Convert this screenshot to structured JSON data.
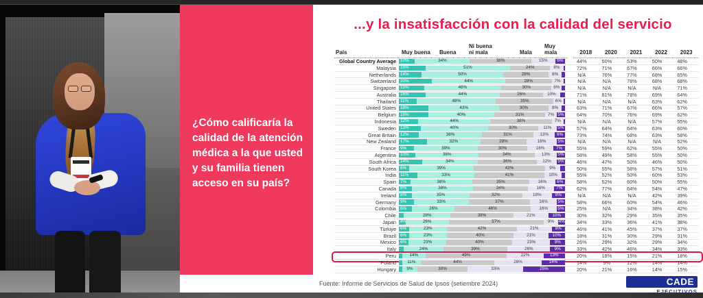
{
  "slide": {
    "question": "¿Cómo calificaría la calidad de la atención médica a la que usted y su familia tienen acceso en su país?",
    "title": "...y la insatisfacción con la calidad del servicio",
    "source": "Fuente: Informe de Servicios de Salud de Ipsos (setiembre 2024)",
    "logo": {
      "primary": "CADE",
      "secondary": "EJECUTIVOS"
    },
    "accent_pink": "#ef3a5d",
    "title_color": "#e91c4e"
  },
  "chart_data": {
    "type": "bar",
    "stacked": true,
    "orientation": "horizontal",
    "title": "...y la insatisfacción con la calidad del servicio",
    "country_column_header": "País",
    "segment_labels": [
      "Muy buena",
      "Buena",
      "Ni buena\nni mala",
      "Mala",
      "Muy mala"
    ],
    "year_labels": [
      "2018",
      "2020",
      "2021",
      "2022",
      "2023"
    ],
    "units": "%",
    "highlight_country": "Peru",
    "colors": {
      "muy_buena": "#35c4b4",
      "buena": "#a8efe2",
      "ni_buena_ni_mala": "#c9c9c9",
      "mala": "#e8e2f5",
      "muy_mala": "#5e2ca5",
      "highlight_box": "#e0164b"
    },
    "rows": [
      {
        "country": "Global Country Average",
        "bold": true,
        "segments": [
          10,
          34,
          38,
          15,
          6
        ],
        "years": [
          "44%",
          "50%",
          "53%",
          "50%",
          "48%"
        ]
      },
      {
        "country": "Malaysia",
        "segments": [
          16,
          51,
          24,
          8,
          1
        ],
        "years": [
          "72%",
          "71%",
          "67%",
          "66%",
          "66%"
        ]
      },
      {
        "country": "Netherlands",
        "segments": [
          14,
          50,
          28,
          8,
          2
        ],
        "years": [
          "N/A",
          "76%",
          "77%",
          "68%",
          "65%"
        ]
      },
      {
        "country": "Switzerland",
        "segments": [
          20,
          44,
          28,
          7,
          1
        ],
        "years": [
          "N/A",
          "N/A",
          "78%",
          "68%",
          "68%"
        ]
      },
      {
        "country": "Singapore",
        "segments": [
          15,
          46,
          30,
          6,
          2
        ],
        "years": [
          "N/A",
          "N/A",
          "N/A",
          "N/A",
          "71%"
        ]
      },
      {
        "country": "Australia",
        "segments": [
          16,
          44,
          26,
          10,
          3
        ],
        "years": [
          "71%",
          "81%",
          "78%",
          "69%",
          "64%"
        ]
      },
      {
        "country": "Thailand",
        "segments": [
          11,
          48,
          35,
          6,
          1
        ],
        "years": [
          "N/A",
          "N/A",
          "N/A",
          "63%",
          "62%"
        ]
      },
      {
        "country": "United States",
        "segments": [
          18,
          43,
          30,
          8,
          2
        ],
        "years": [
          "63%",
          "71%",
          "67%",
          "66%",
          "57%"
        ]
      },
      {
        "country": "Belgium",
        "segments": [
          18,
          40,
          31,
          7,
          5
        ],
        "years": [
          "64%",
          "70%",
          "76%",
          "69%",
          "62%"
        ]
      },
      {
        "country": "Indonesia",
        "segments": [
          12,
          44,
          38,
          7,
          1
        ],
        "years": [
          "N/A",
          "N/A",
          "N/A",
          "57%",
          "55%"
        ]
      },
      {
        "country": "Sweden",
        "segments": [
          13,
          40,
          30,
          11,
          5
        ],
        "years": [
          "57%",
          "64%",
          "64%",
          "63%",
          "60%"
        ]
      },
      {
        "country": "Great Britain",
        "segments": [
          12,
          38,
          31,
          13,
          6
        ],
        "years": [
          "73%",
          "74%",
          "68%",
          "63%",
          "58%"
        ]
      },
      {
        "country": "New Zealand",
        "segments": [
          17,
          32,
          28,
          18,
          5
        ],
        "years": [
          "N/A",
          "N/A",
          "N/A",
          "N/A",
          "52%"
        ]
      },
      {
        "country": "France",
        "segments": [
          9,
          39,
          30,
          16,
          7
        ],
        "years": [
          "55%",
          "59%",
          "62%",
          "55%",
          "50%"
        ]
      },
      {
        "country": "Argentina",
        "segments": [
          10,
          38,
          34,
          13,
          5
        ],
        "years": [
          "58%",
          "49%",
          "58%",
          "55%",
          "50%"
        ]
      },
      {
        "country": "South Africa",
        "segments": [
          14,
          34,
          36,
          12,
          5
        ],
        "years": [
          "46%",
          "47%",
          "50%",
          "46%",
          "50%"
        ]
      },
      {
        "country": "South Korea",
        "segments": [
          6,
          39,
          43,
          9,
          3
        ],
        "years": [
          "50%",
          "55%",
          "58%",
          "57%",
          "51%"
        ]
      },
      {
        "country": "India",
        "segments": [
          11,
          33,
          41,
          10,
          2
        ],
        "years": [
          "55%",
          "52%",
          "50%",
          "60%",
          "53%"
        ]
      },
      {
        "country": "Spain",
        "segments": [
          7,
          38,
          35,
          16,
          6
        ],
        "years": [
          "58%",
          "52%",
          "60%",
          "50%",
          "55%"
        ]
      },
      {
        "country": "Canada",
        "segments": [
          8,
          38,
          34,
          16,
          7
        ],
        "years": [
          "62%",
          "77%",
          "64%",
          "54%",
          "47%"
        ]
      },
      {
        "country": "Ireland",
        "segments": [
          8,
          35,
          32,
          18,
          8
        ],
        "years": [
          "N/A",
          "N/A",
          "N/A",
          "42%",
          "39%"
        ]
      },
      {
        "country": "Germany",
        "segments": [
          9,
          33,
          37,
          16,
          5
        ],
        "years": [
          "58%",
          "66%",
          "60%",
          "54%",
          "46%"
        ]
      },
      {
        "country": "Colombia",
        "segments": [
          8,
          26,
          46,
          16,
          5
        ],
        "years": [
          "25%",
          "N/A",
          "34%",
          "38%",
          "42%"
        ]
      },
      {
        "country": "Chile",
        "segments": [
          3,
          28,
          38,
          21,
          10
        ],
        "years": [
          "30%",
          "32%",
          "29%",
          "35%",
          "35%"
        ]
      },
      {
        "country": "Japan",
        "segments": [
          4,
          26,
          57,
          9,
          4
        ],
        "years": [
          "34%",
          "33%",
          "36%",
          "41%",
          "38%"
        ]
      },
      {
        "country": "Türkiye",
        "segments": [
          6,
          23,
          42,
          21,
          8
        ],
        "years": [
          "46%",
          "41%",
          "45%",
          "37%",
          "37%"
        ]
      },
      {
        "country": "Brazil",
        "segments": [
          6,
          23,
          40,
          21,
          10
        ],
        "years": [
          "18%",
          "31%",
          "30%",
          "29%",
          "31%"
        ]
      },
      {
        "country": "Mexico",
        "segments": [
          6,
          23,
          40,
          23,
          9
        ],
        "years": [
          "26%",
          "29%",
          "32%",
          "29%",
          "34%"
        ]
      },
      {
        "country": "Italy",
        "segments": [
          3,
          24,
          39,
          26,
          9
        ],
        "years": [
          "33%",
          "42%",
          "46%",
          "34%",
          "33%"
        ]
      },
      {
        "country": "Peru",
        "highlight": true,
        "segments": [
          2,
          14,
          49,
          22,
          13
        ],
        "years": [
          "20%",
          "18%",
          "15%",
          "21%",
          "18%"
        ]
      },
      {
        "country": "Poland",
        "segments": [
          2,
          11,
          44,
          28,
          14
        ],
        "years": [
          "14%",
          "9%",
          "12%",
          "14%",
          "14%"
        ]
      },
      {
        "country": "Hungary",
        "segments": [
          2,
          9,
          30,
          33,
          25
        ],
        "years": [
          "20%",
          "21%",
          "16%",
          "14%",
          "15%"
        ]
      }
    ]
  }
}
